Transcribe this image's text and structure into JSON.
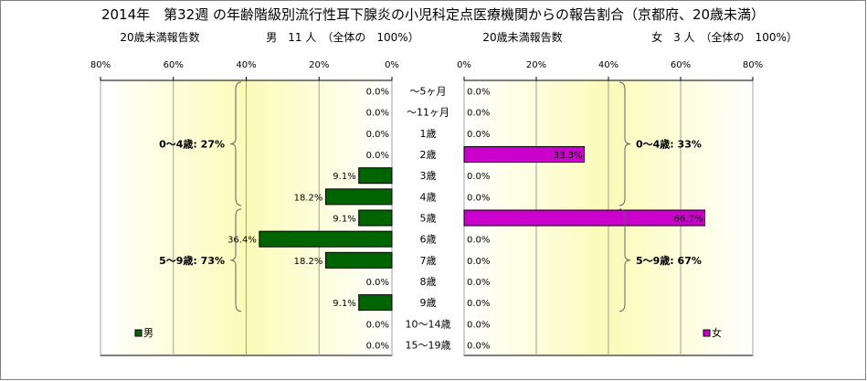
{
  "chart_data": {
    "type": "bar",
    "title": "2014年　第32週 の年齢階級別流行性耳下腺炎の小児科定点医療機関からの報告割合（京都府、20歳未満）",
    "categories": [
      "～5ヶ月",
      "～11ヶ月",
      "1歳",
      "2歳",
      "3歳",
      "4歳",
      "5歳",
      "6歳",
      "7歳",
      "8歳",
      "9歳",
      "10～14歳",
      "15～19歳"
    ],
    "axis_ticks": [
      "80%",
      "60%",
      "40%",
      "20%",
      "0%"
    ],
    "axis_ticks_right": [
      "0%",
      "20%",
      "40%",
      "60%",
      "80%"
    ],
    "xlim": [
      0,
      80
    ],
    "grid": true,
    "series": [
      {
        "name": "男",
        "side": "left",
        "color": "#006400",
        "header_label": "20歳未満報告数",
        "header_total": "男　11 人　（全体の　100%）",
        "values": [
          0,
          0,
          0,
          0,
          9.1,
          18.2,
          9.1,
          36.4,
          18.2,
          0,
          9.1,
          0,
          0
        ],
        "labels": [
          "0.0%",
          "0.0%",
          "0.0%",
          "0.0%",
          "9.1%",
          "18.2%",
          "9.1%",
          "36.4%",
          "18.2%",
          "0.0%",
          "9.1%",
          "0.0%",
          "0.0%"
        ],
        "brackets": [
          {
            "label": "0～4歳: 27%",
            "from": 0,
            "to": 5
          },
          {
            "label": "5～9歳: 73%",
            "from": 6,
            "to": 10
          }
        ],
        "legend": "男"
      },
      {
        "name": "女",
        "side": "right",
        "color": "#cc00cc",
        "header_label": "20歳未満報告数",
        "header_total": "女　3 人　（全体の　100%）",
        "values": [
          0,
          0,
          0,
          33.3,
          0,
          0,
          66.7,
          0,
          0,
          0,
          0,
          0,
          0
        ],
        "labels": [
          "0.0%",
          "0.0%",
          "0.0%",
          "33.3%",
          "0.0%",
          "0.0%",
          "66.7%",
          "0.0%",
          "0.0%",
          "0.0%",
          "0.0%",
          "0.0%",
          "0.0%"
        ],
        "brackets": [
          {
            "label": "0～4歳: 33%",
            "from": 0,
            "to": 5
          },
          {
            "label": "5～9歳: 67%",
            "from": 6,
            "to": 10
          }
        ],
        "legend": "女"
      }
    ]
  }
}
